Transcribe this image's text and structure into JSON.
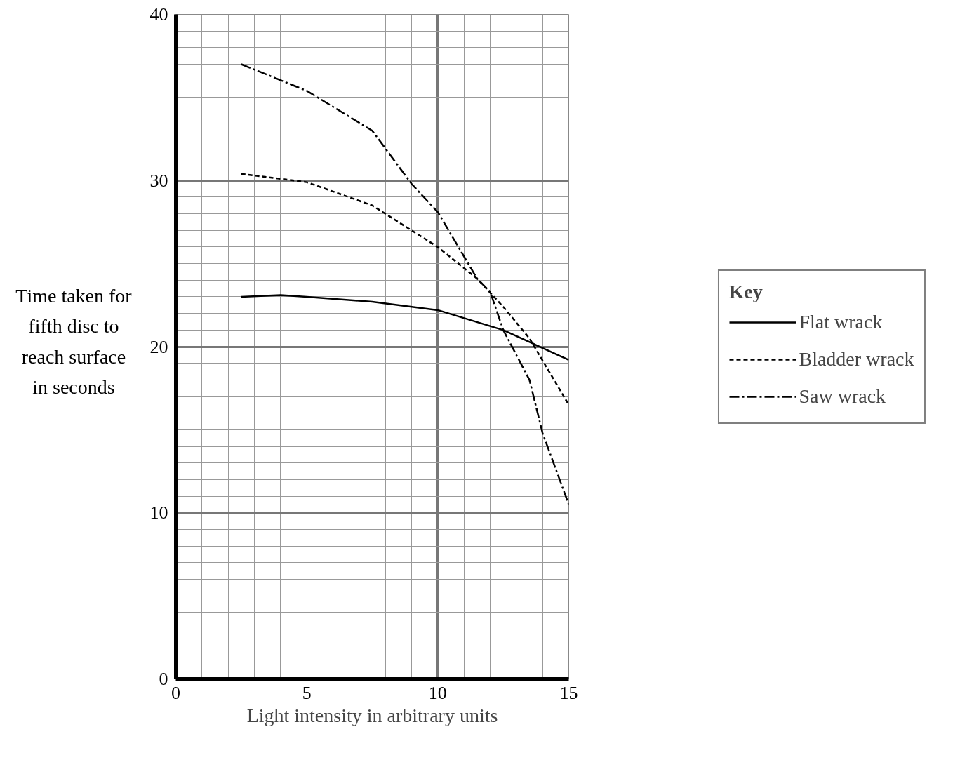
{
  "chart_data": {
    "type": "line",
    "xlabel": "Light intensity in arbitrary units",
    "ylabel": "Time taken for fifth disc to reach surface in seconds",
    "legend_title": "Key",
    "xlim": [
      0,
      15
    ],
    "ylim": [
      0,
      40
    ],
    "xticks": [
      0,
      5,
      10,
      15
    ],
    "yticks": [
      0,
      10,
      20,
      30,
      40
    ],
    "grid": true,
    "legend": "right",
    "marker": "none",
    "series": [
      {
        "name": "Flat wrack",
        "color": "#000000",
        "line_style": "solid",
        "x": [
          2.5,
          4,
          5,
          7.5,
          10,
          12.5,
          15
        ],
        "values": [
          23,
          23.1,
          23,
          22.7,
          22.2,
          21,
          19.2
        ]
      },
      {
        "name": "Bladder wrack",
        "color": "#000000",
        "line_style": "dashed",
        "x": [
          2.5,
          5,
          7.5,
          10,
          11.5,
          12.5,
          13.5,
          15
        ],
        "values": [
          30.4,
          29.9,
          28.5,
          26,
          24.1,
          22.4,
          20.5,
          16.5
        ]
      },
      {
        "name": "Saw wrack",
        "color": "#000000",
        "line_style": "dashdot",
        "x": [
          2.5,
          5,
          7.5,
          9,
          10,
          11.5,
          12,
          12.5,
          13.5,
          14,
          15
        ],
        "values": [
          37,
          35.4,
          33,
          29.8,
          28.1,
          24.1,
          23.3,
          21,
          18,
          14.8,
          10.5
        ]
      }
    ]
  }
}
